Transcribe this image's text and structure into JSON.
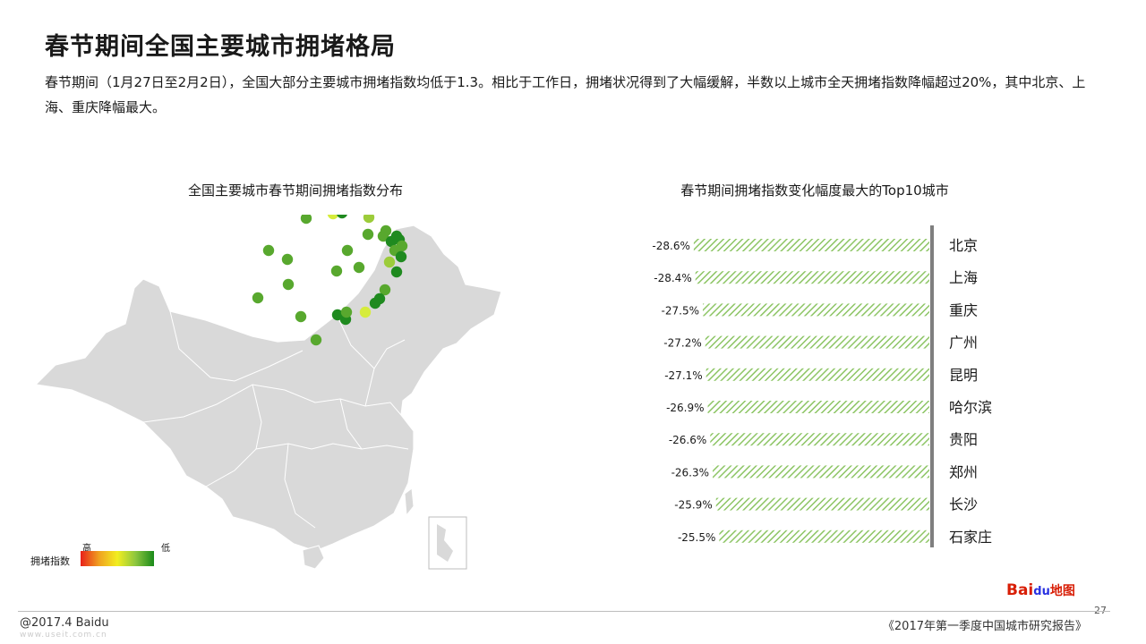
{
  "header": {
    "title": "春节期间全国主要城市拥堵格局",
    "subtitle": "春节期间（1月27日至2月2日），全国大部分主要城市拥堵指数均低于1.3。相比于工作日，拥堵状况得到了大幅缓解，半数以上城市全天拥堵指数降幅超过20%，其中北京、上海、重庆降幅最大。"
  },
  "map_panel": {
    "title": "全国主要城市春节期间拥堵指数分布",
    "legend": {
      "label": "拥堵指数",
      "high": "高",
      "low": "低"
    },
    "colors": {
      "land": "#d9d9d9",
      "border": "#ffffff",
      "dot_dark": "#1f8a1f",
      "dot_mid": "#58a82e",
      "dot_light": "#9ccc3a",
      "dot_yellow": "#d6ec3c"
    }
  },
  "chart_data": {
    "type": "bar",
    "title": "春节期间拥堵指数变化幅度最大的Top10城市",
    "categories": [
      "北京",
      "上海",
      "重庆",
      "广州",
      "昆明",
      "哈尔滨",
      "贵阳",
      "郑州",
      "长沙",
      "石家庄"
    ],
    "values": [
      -28.6,
      -28.4,
      -27.5,
      -27.2,
      -27.1,
      -26.9,
      -26.6,
      -26.3,
      -25.9,
      -25.5
    ],
    "labels": [
      "-28.6%",
      "-28.4%",
      "-27.5%",
      "-27.2%",
      "-27.1%",
      "-26.9%",
      "-26.6%",
      "-26.3%",
      "-25.9%",
      "-25.5%"
    ],
    "orientation": "horizontal",
    "bar_fill": "hatched light green",
    "bar_color": "#8dc565",
    "axis_color": "#7f7f7f",
    "xlim": [
      -30,
      0
    ]
  },
  "footer": {
    "left": "@2017.4 Baidu",
    "right": "《2017年第一季度中国城市研究报告》",
    "page_number": "27",
    "logo_brand": "Bai",
    "logo_mark": "du",
    "logo_product": "地图",
    "watermark": "www.useit.com.cn"
  }
}
